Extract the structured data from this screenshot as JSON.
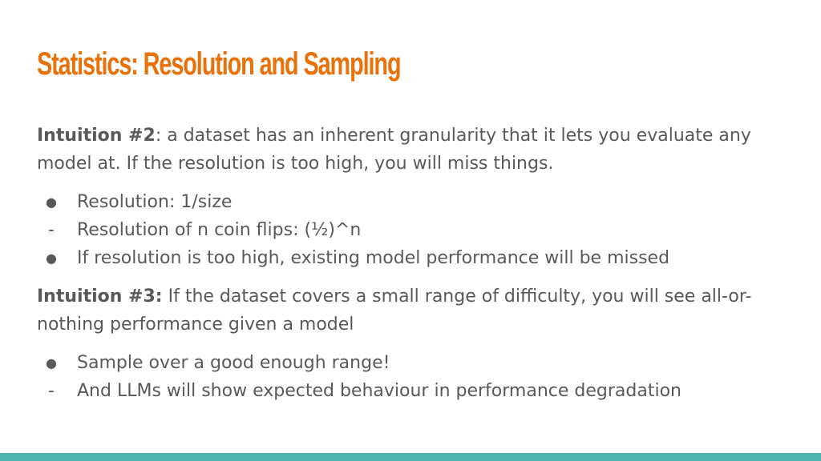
{
  "colors": {
    "title": "#e8710a",
    "body_text": "#595959",
    "bottom_bar": "#4db6ac"
  },
  "title": "Statistics: Resolution and Sampling",
  "intuition2": {
    "lead": "Intuition #2",
    "text": ": a dataset has an inherent granularity that it lets you evaluate any model at. If the resolution is too high, you will miss things."
  },
  "list1": [
    {
      "marker": "●",
      "text": "Resolution: 1/size"
    },
    {
      "marker": "-",
      "text": "Resolution of n coin flips: (½)^n"
    },
    {
      "marker": "●",
      "text": "If resolution is too high, existing model performance will be missed"
    }
  ],
  "intuition3": {
    "lead": "Intuition #3:",
    "text": " If the dataset covers a small range of difficulty, you will see all-or-nothing performance given a model"
  },
  "list2": [
    {
      "marker": "●",
      "text": "Sample over a good enough range!"
    },
    {
      "marker": "-",
      "text": "And LLMs will show expected behaviour in performance degradation"
    }
  ]
}
